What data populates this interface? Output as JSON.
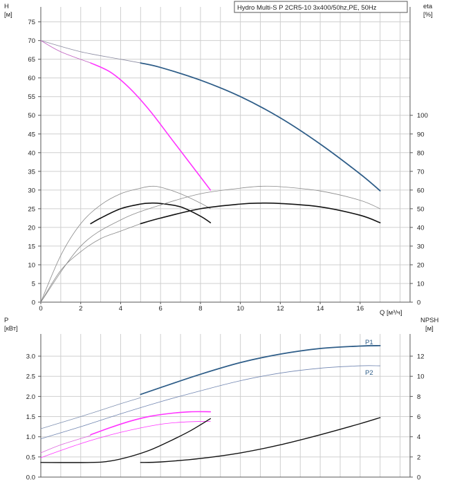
{
  "chart_data": [
    {
      "type": "line",
      "title": "Hydro Multi-S P 2CR5-10 3x400/50hz,PE, 50Hz",
      "xlabel": "Q [м³/ч]",
      "ylabel_left": "H",
      "ylabel_left_unit": "[м]",
      "ylabel_right": "eta",
      "ylabel_right_unit": "[%]",
      "xlim": [
        0,
        18.5
      ],
      "ylim_left": [
        0,
        79
      ],
      "ylim_right": [
        0,
        158
      ],
      "x_ticks": [
        0,
        2,
        4,
        6,
        8,
        10,
        12,
        14,
        16
      ],
      "x_tick_labels": [
        "0",
        "2",
        "4",
        "6",
        "8",
        "10",
        "12",
        "14",
        "16"
      ],
      "y_left_ticks": [
        0,
        5,
        10,
        15,
        20,
        25,
        30,
        35,
        40,
        45,
        50,
        55,
        60,
        65,
        70,
        75
      ],
      "y_left_tick_labels": [
        "0",
        "5",
        "10",
        "15",
        "20",
        "25",
        "30",
        "35",
        "40",
        "45",
        "50",
        "55",
        "60",
        "65",
        "70",
        "75"
      ],
      "y_right_ticks": [
        0,
        10,
        20,
        30,
        40,
        50,
        60,
        70,
        80,
        90,
        100
      ],
      "y_right_tick_labels": [
        "0",
        "10",
        "20",
        "30",
        "40",
        "50",
        "60",
        "70",
        "80",
        "90",
        "100"
      ],
      "series": [
        {
          "name": "H thin",
          "axis": "left",
          "color": "#8a8aa0",
          "width": 0.8,
          "x": [
            0,
            2,
            4,
            5
          ],
          "y": [
            70,
            67,
            65,
            64
          ]
        },
        {
          "name": "H",
          "axis": "left",
          "color": "#2e5d88",
          "width": 1.8,
          "x": [
            5,
            6,
            8,
            10,
            12,
            14,
            16,
            17
          ],
          "y": [
            64,
            62.8,
            59.4,
            55,
            49.3,
            42.3,
            34.3,
            29.8
          ]
        },
        {
          "name": "H thin partial",
          "axis": "left",
          "color": "#c060c0",
          "width": 0.8,
          "x": [
            0,
            1,
            2.5
          ],
          "y": [
            70,
            67,
            64
          ]
        },
        {
          "name": "H partial",
          "axis": "left",
          "color": "#ff33ff",
          "width": 1.6,
          "x": [
            2.5,
            3.5,
            4.5,
            5.5,
            6.5,
            7.5,
            8.5
          ],
          "y": [
            64,
            61.5,
            57,
            51,
            44,
            37,
            30
          ]
        },
        {
          "name": "eta thin 1",
          "axis": "right",
          "color": "#888888",
          "width": 0.8,
          "x": [
            0,
            1,
            2,
            3,
            4,
            5,
            5.5,
            6,
            7,
            8,
            8.5
          ],
          "y": [
            0,
            25,
            42,
            52,
            58,
            61,
            62,
            61.5,
            58,
            53,
            50
          ]
        },
        {
          "name": "eta 1",
          "axis": "right",
          "color": "#111111",
          "width": 1.6,
          "x": [
            2.5,
            3,
            4,
            5,
            5.5,
            6,
            7,
            8,
            8.5
          ],
          "y": [
            42,
            45,
            50,
            52.5,
            53,
            52.8,
            51,
            46,
            42.5
          ]
        },
        {
          "name": "eta thin 2",
          "axis": "right",
          "color": "#888888",
          "width": 0.8,
          "x": [
            0,
            2,
            4,
            6,
            8,
            10,
            11,
            12,
            14,
            16,
            17
          ],
          "y": [
            0,
            30,
            44,
            52,
            58,
            61,
            62,
            61.8,
            59.5,
            54.5,
            50
          ]
        },
        {
          "name": "eta thin 3",
          "axis": "right",
          "color": "#888888",
          "width": 0.8,
          "x": [
            0,
            1,
            2,
            3,
            4,
            5
          ],
          "y": [
            0,
            17,
            27,
            34,
            38,
            42
          ]
        },
        {
          "name": "eta 2",
          "axis": "right",
          "color": "#111111",
          "width": 1.6,
          "x": [
            5,
            6,
            8,
            10,
            11,
            12,
            14,
            16,
            17
          ],
          "y": [
            42,
            45,
            50,
            52.5,
            53,
            52.8,
            51,
            46.5,
            42.5
          ]
        }
      ]
    },
    {
      "type": "line",
      "xlabel": "",
      "ylabel_left": "P",
      "ylabel_left_unit": "[кВт]",
      "ylabel_right": "NPSH",
      "ylabel_right_unit": "[м]",
      "xlim": [
        0,
        18.5
      ],
      "ylim_left": [
        0,
        3.55
      ],
      "ylim_right": [
        0,
        14.2
      ],
      "y_left_ticks": [
        0,
        0.5,
        1.0,
        1.5,
        2.0,
        2.5,
        3.0
      ],
      "y_left_tick_labels": [
        "0.0",
        "0.5",
        "1.0",
        "1.5",
        "2.0",
        "2.5",
        "3.0"
      ],
      "y_right_ticks": [
        0,
        2,
        4,
        6,
        8,
        10,
        12
      ],
      "y_right_tick_labels": [
        "0",
        "2",
        "4",
        "6",
        "8",
        "10",
        "12"
      ],
      "series": [
        {
          "name": "P1 thin",
          "axis": "left",
          "color": "#7d8fb0",
          "width": 0.8,
          "x": [
            0,
            2,
            4,
            5
          ],
          "y": [
            1.2,
            1.5,
            1.82,
            1.97
          ]
        },
        {
          "name": "P1",
          "axis": "left",
          "color": "#2e5d88",
          "width": 1.8,
          "label": "P1",
          "x": [
            5,
            6,
            8,
            10,
            12,
            14,
            16,
            17
          ],
          "y": [
            2.05,
            2.22,
            2.55,
            2.84,
            3.05,
            3.19,
            3.25,
            3.26
          ]
        },
        {
          "name": "P2",
          "axis": "left",
          "color": "#6f84b0",
          "width": 0.8,
          "label": "P2",
          "x": [
            0,
            2,
            4,
            6,
            8,
            10,
            12,
            14,
            16,
            17
          ],
          "y": [
            0.95,
            1.25,
            1.57,
            1.87,
            2.14,
            2.39,
            2.58,
            2.7,
            2.76,
            2.76
          ]
        },
        {
          "name": "P1 partial thin",
          "axis": "left",
          "color": "#dd66dd",
          "width": 0.8,
          "x": [
            0,
            1,
            2.5
          ],
          "y": [
            0.6,
            0.8,
            1.03
          ]
        },
        {
          "name": "P1 partial",
          "axis": "left",
          "color": "#ff33ff",
          "width": 1.6,
          "x": [
            2.5,
            3.5,
            4.5,
            5.5,
            6.5,
            7.5,
            8.5
          ],
          "y": [
            1.05,
            1.23,
            1.39,
            1.51,
            1.58,
            1.62,
            1.62
          ]
        },
        {
          "name": "P2 partial",
          "axis": "left",
          "color": "#ff33ff",
          "width": 0.8,
          "x": [
            0,
            1,
            2,
            3,
            4,
            5,
            6,
            7,
            8,
            8.5
          ],
          "y": [
            0.48,
            0.66,
            0.83,
            0.98,
            1.11,
            1.22,
            1.31,
            1.36,
            1.38,
            1.38
          ]
        },
        {
          "name": "NPSH 1",
          "axis": "right",
          "color": "#111111",
          "width": 1.4,
          "x": [
            0,
            2.5,
            3.5,
            4.5,
            5.5,
            6.5,
            7.5,
            8.5
          ],
          "y": [
            1.45,
            1.45,
            1.6,
            2.05,
            2.7,
            3.6,
            4.6,
            5.8
          ]
        },
        {
          "name": "NPSH 2",
          "axis": "right",
          "color": "#111111",
          "width": 1.4,
          "x": [
            5,
            6,
            8,
            10,
            12,
            14,
            16,
            17
          ],
          "y": [
            1.45,
            1.5,
            1.85,
            2.4,
            3.2,
            4.2,
            5.3,
            5.9
          ]
        }
      ]
    }
  ]
}
